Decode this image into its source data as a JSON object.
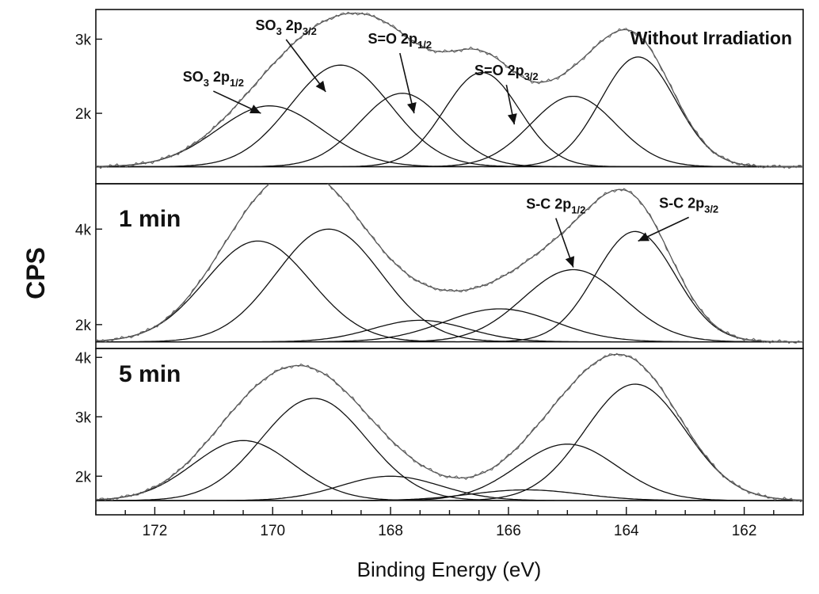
{
  "chart_data": {
    "type": "line",
    "title": "",
    "xlabel": "Binding Energy (eV)",
    "ylabel": "CPS",
    "xlim": [
      173,
      161
    ],
    "x_reversed": true,
    "x_ticks": [
      172,
      170,
      168,
      166,
      164,
      162
    ],
    "x_tick_labels": [
      "172",
      "170",
      "168",
      "166",
      "164",
      "162"
    ],
    "panels": [
      {
        "label": "Without Irradiation",
        "ylim": [
          1050,
          3400
        ],
        "y_ticks": [
          2000,
          3000
        ],
        "y_tick_labels": [
          "2k",
          "3k"
        ],
        "baseline": 1280,
        "components": [
          {
            "center": 170.05,
            "height": 2100,
            "fwhm": 2.1
          },
          {
            "center": 168.85,
            "height": 2650,
            "fwhm": 2.0
          },
          {
            "center": 167.8,
            "height": 2270,
            "fwhm": 1.7
          },
          {
            "center": 166.45,
            "height": 2550,
            "fwhm": 1.5
          },
          {
            "center": 164.9,
            "height": 2230,
            "fwhm": 1.7
          },
          {
            "center": 163.8,
            "height": 2760,
            "fwhm": 1.5
          }
        ],
        "annotations": [
          {
            "main": "SO",
            "sub1": "3",
            "mid": " 2p",
            "sub2": "1/2",
            "x": 170.2,
            "y": 2000
          },
          {
            "main": "SO",
            "sub1": "3",
            "mid": " 2p",
            "sub2": "3/2",
            "x": 169.1,
            "y": 2290
          },
          {
            "main": "S=O 2p",
            "sub1": "",
            "mid": "",
            "sub2": "1/2",
            "x": 167.6,
            "y": 2000
          },
          {
            "main": "S=O 2p",
            "sub1": "",
            "mid": "",
            "sub2": "3/2",
            "x": 165.9,
            "y": 1850
          }
        ]
      },
      {
        "label": "1 min",
        "ylim": [
          1500,
          4950
        ],
        "y_ticks": [
          2000,
          4000
        ],
        "y_tick_labels": [
          "2k",
          "4k"
        ],
        "baseline": 1640,
        "components": [
          {
            "center": 170.25,
            "height": 3750,
            "fwhm": 2.1
          },
          {
            "center": 169.05,
            "height": 4000,
            "fwhm": 2.1
          },
          {
            "center": 167.5,
            "height": 2090,
            "fwhm": 1.9
          },
          {
            "center": 166.15,
            "height": 2330,
            "fwhm": 2.2
          },
          {
            "center": 164.9,
            "height": 3150,
            "fwhm": 2.0
          },
          {
            "center": 163.85,
            "height": 3950,
            "fwhm": 1.6
          }
        ],
        "annotations": [
          {
            "main": "S-C 2p",
            "sub1": "",
            "mid": "",
            "sub2": "1/2",
            "x": 164.9,
            "y": 3200
          },
          {
            "main": "S-C 2p",
            "sub1": "",
            "mid": "",
            "sub2": "3/2",
            "x": 163.8,
            "y": 3750
          }
        ]
      },
      {
        "label": "5 min",
        "ylim": [
          1350,
          4150
        ],
        "y_ticks": [
          2000,
          3000,
          4000
        ],
        "y_tick_labels": [
          "2k",
          "3k",
          "4k"
        ],
        "baseline": 1590,
        "components": [
          {
            "center": 170.5,
            "height": 2600,
            "fwhm": 2.0
          },
          {
            "center": 169.3,
            "height": 3310,
            "fwhm": 2.1
          },
          {
            "center": 168.0,
            "height": 2000,
            "fwhm": 2.0
          },
          {
            "center": 165.7,
            "height": 1770,
            "fwhm": 2.2
          },
          {
            "center": 165.0,
            "height": 2540,
            "fwhm": 2.0
          },
          {
            "center": 163.85,
            "height": 3550,
            "fwhm": 2.0
          }
        ],
        "annotations": []
      }
    ]
  }
}
